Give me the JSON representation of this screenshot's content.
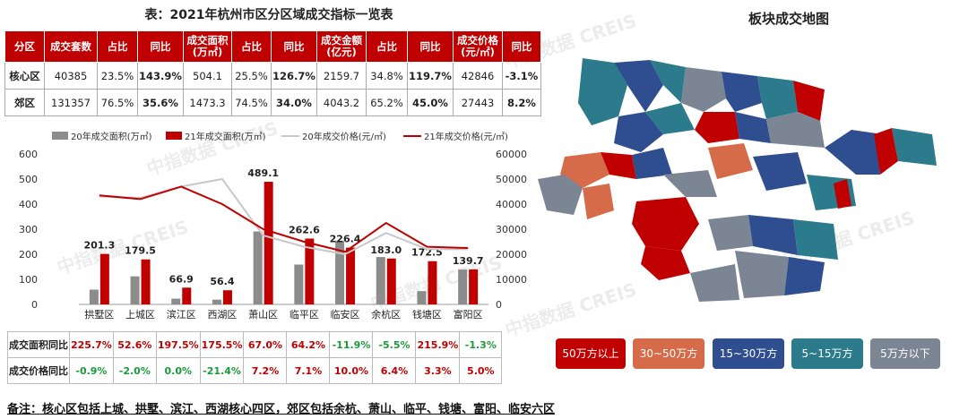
{
  "table_title": "表：2021年杭州市区分区域成交指标一览表",
  "top_table": {
    "headers": [
      "分区",
      "成交套数",
      "占比",
      "同比",
      "成交面积(万㎡)",
      "占比",
      "同比",
      "成交金额(亿元)",
      "占比",
      "同比",
      "成交价格(元/㎡)",
      "同比"
    ],
    "rows": [
      [
        "核心区",
        "40385",
        "23.5%",
        "143.9%",
        "504.1",
        "25.5%",
        "126.7%",
        "2159.7",
        "34.8%",
        "119.7%",
        "42846",
        "-3.1%"
      ],
      [
        "郊区",
        "131357",
        "76.5%",
        "35.6%",
        "1473.3",
        "74.5%",
        "34.0%",
        "4043.2",
        "65.2%",
        "45.0%",
        "27443",
        "8.2%"
      ]
    ]
  },
  "chart_data": {
    "type": "bar",
    "categories": [
      "拱墅区",
      "上城区",
      "滨江区",
      "西湖区",
      "萧山区",
      "临平区",
      "临安区",
      "余杭区",
      "钱塘区",
      "富阳区"
    ],
    "series": [
      {
        "name": "20年成交面积(万㎡)",
        "type": "bar",
        "axis": "left",
        "color": "#8c8c8c",
        "values": [
          59,
          112,
          23,
          19,
          291,
          159,
          254,
          189,
          53,
          139
        ]
      },
      {
        "name": "21年成交面积(万㎡)",
        "type": "bar",
        "axis": "left",
        "color": "#c00000",
        "values": [
          201.3,
          179.5,
          66.9,
          56.4,
          489.1,
          262.6,
          226.4,
          183.0,
          172.5,
          139.7
        ]
      },
      {
        "name": "20年成交价格(元/㎡)",
        "type": "line",
        "axis": "right",
        "color": "#c8c8c8",
        "values": [
          43000,
          42500,
          47000,
          50000,
          27500,
          23000,
          20000,
          28500,
          22000,
          22000
        ]
      },
      {
        "name": "21年成交价格(元/㎡)",
        "type": "line",
        "axis": "right",
        "color": "#c00000",
        "values": [
          43500,
          42000,
          47000,
          40000,
          30000,
          25000,
          21000,
          32500,
          23000,
          22500
        ]
      }
    ],
    "bar_labels": [
      "201.3",
      "179.5",
      "66.9",
      "56.4",
      "489.1",
      "262.6",
      "226.4",
      "183.0",
      "172.5",
      "139.7"
    ],
    "ylim_left": [
      0,
      600
    ],
    "ylim_right": [
      0,
      60000
    ],
    "left_ticks": [
      "0",
      "100",
      "200",
      "300",
      "400",
      "500",
      "600"
    ],
    "right_ticks": [
      "0",
      "10000",
      "20000",
      "30000",
      "40000",
      "50000",
      "60000"
    ]
  },
  "bottom_table": {
    "rows": [
      {
        "label": "成交面积同比",
        "values": [
          "225.7%",
          "52.6%",
          "197.5%",
          "175.5%",
          "67.0%",
          "64.2%",
          "-11.9%",
          "-5.5%",
          "215.9%",
          "-1.3%"
        ]
      },
      {
        "label": "成交价格同比",
        "values": [
          "-0.9%",
          "-2.0%",
          "0.0%",
          "-21.4%",
          "7.2%",
          "7.1%",
          "10.0%",
          "6.4%",
          "3.3%",
          "5.0%"
        ]
      }
    ]
  },
  "note": "备注：核心区包括上城、拱墅、滨江、西湖核心四区，郊区包括余杭、萧山、临平、钱塘、富阳、临安六区",
  "map_title": "板块成交地图",
  "legend": [
    {
      "label": "50万方以上",
      "color": "#c00000"
    },
    {
      "label": "30~50万方",
      "color": "#d66b4a"
    },
    {
      "label": "15~30万方",
      "color": "#2e4e8f"
    },
    {
      "label": "5~15万方",
      "color": "#2b7b8c"
    },
    {
      "label": "5万方以下",
      "color": "#7b8593"
    }
  ],
  "watermark": "中指数据 CREIS"
}
